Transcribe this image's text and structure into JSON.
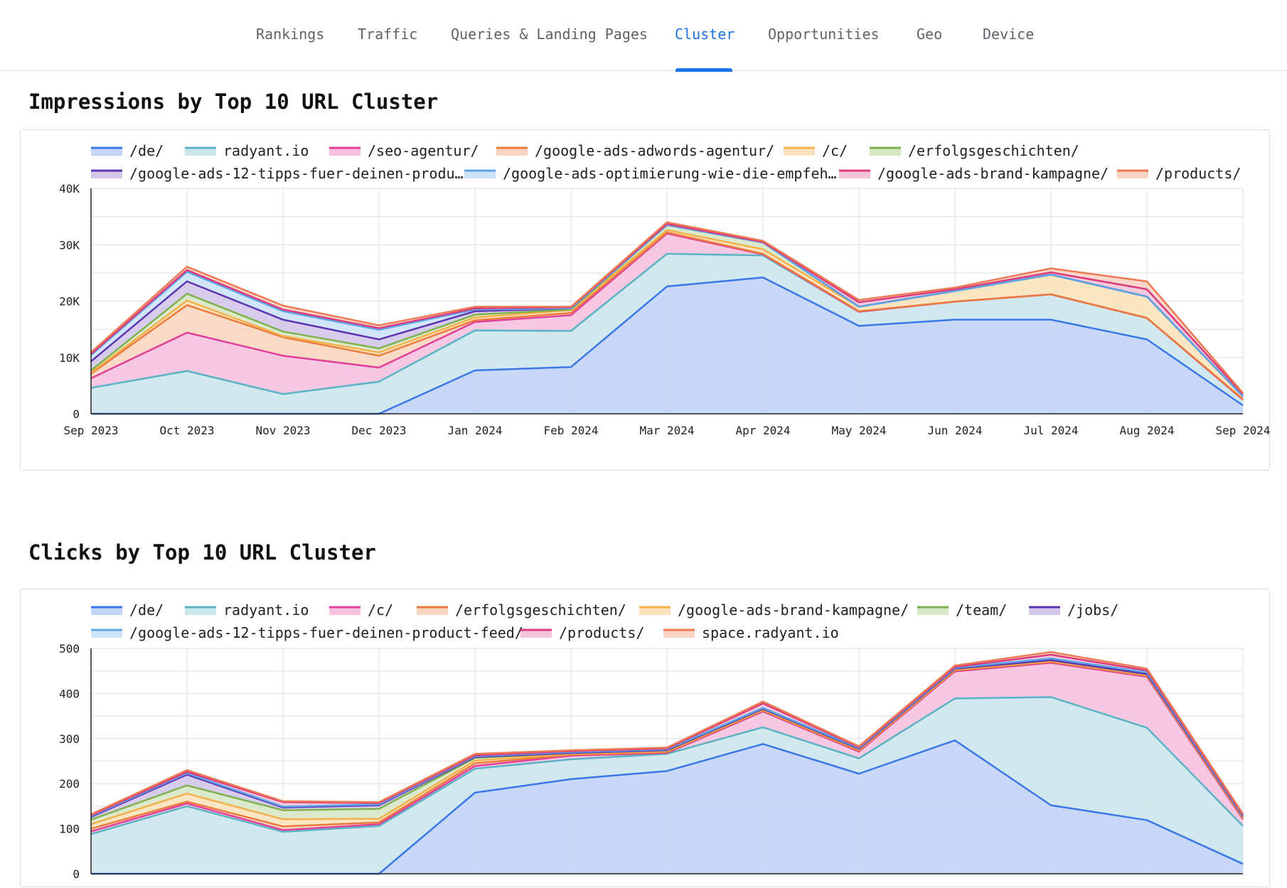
{
  "nav": {
    "tabs": [
      {
        "label": "Rankings",
        "active": false
      },
      {
        "label": "Traffic",
        "active": false
      },
      {
        "label": "Queries & Landing Pages",
        "active": false
      },
      {
        "label": "Cluster",
        "active": true
      },
      {
        "label": "Opportunities",
        "active": false
      },
      {
        "label": "Geo",
        "active": false
      },
      {
        "label": "Device",
        "active": false
      }
    ],
    "active_color": "#1a73e8"
  },
  "sections": [
    {
      "title": "Impressions by Top 10 URL Cluster"
    },
    {
      "title": "Clicks by Top 10 URL Cluster"
    }
  ],
  "chart_data": [
    {
      "type": "area",
      "stacked": true,
      "title": "Impressions by Top 10 URL Cluster",
      "x": [
        "Sep 2023",
        "Oct 2023",
        "Nov 2023",
        "Dec 2023",
        "Jan 2024",
        "Feb 2024",
        "Mar 2024",
        "Apr 2024",
        "May 2024",
        "Jun 2024",
        "Jul 2024",
        "Aug 2024",
        "Sep 2024"
      ],
      "ylim": [
        0,
        40000
      ],
      "yticks": [
        0,
        10000,
        20000,
        30000,
        40000
      ],
      "ytick_labels": [
        "0",
        "10K",
        "20K",
        "30K",
        "40K"
      ],
      "grid": true,
      "legend_position": "top",
      "series": [
        {
          "name": "/de/",
          "color": "#3b78e7",
          "fill": "#c3d4f7",
          "values": [
            0,
            0,
            0,
            0,
            7700,
            8300,
            22600,
            24200,
            15600,
            16700,
            16700,
            13200,
            1500
          ]
        },
        {
          "name": "radyant.io",
          "color": "#5ab3c5",
          "fill": "#cce7ec",
          "values": [
            4600,
            7600,
            3500,
            5700,
            7100,
            6400,
            5800,
            3900,
            2500,
            3200,
            4500,
            3800,
            1000
          ]
        },
        {
          "name": "/seo-agentur/",
          "color": "#e0409a",
          "fill": "#f6c2df",
          "values": [
            1700,
            6800,
            6800,
            2500,
            1500,
            2800,
            3600,
            200,
            0,
            0,
            0,
            0,
            0
          ]
        },
        {
          "name": "/google-ads-adwords-agentur/",
          "color": "#ec7a3c",
          "fill": "#f8d6c1",
          "values": [
            800,
            4900,
            3300,
            2100,
            300,
            400,
            200,
            100,
            100,
            0,
            0,
            0,
            100
          ]
        },
        {
          "name": "/c/",
          "color": "#f4b04a",
          "fill": "#fbe3bd",
          "values": [
            200,
            800,
            200,
            600,
            500,
            500,
            400,
            800,
            800,
            1900,
            3500,
            3800,
            500
          ]
        },
        {
          "name": "/erfolgsgeschichten/",
          "color": "#7fb24e",
          "fill": "#d7e8c6",
          "values": [
            400,
            1200,
            800,
            700,
            500,
            100,
            900,
            1200,
            0,
            0,
            0,
            0,
            0
          ]
        },
        {
          "name": "/google-ads-12-tipps-fuer-deinen-produ…",
          "color": "#5e35b1",
          "fill": "#d3c7ea",
          "values": [
            1600,
            2200,
            2100,
            1600,
            600,
            200,
            0,
            0,
            0,
            0,
            0,
            0,
            0
          ]
        },
        {
          "name": "/google-ads-optimierung-wie-die-empfeh…",
          "color": "#5ba5e8",
          "fill": "#cce3f8",
          "values": [
            1100,
            1700,
            1500,
            1700,
            300,
            0,
            0,
            0,
            0,
            0,
            0,
            0,
            0
          ]
        },
        {
          "name": "/google-ads-brand-kampagne/",
          "color": "#d93b7d",
          "fill": "#f4c4d8",
          "values": [
            200,
            300,
            300,
            300,
            200,
            200,
            200,
            100,
            800,
            300,
            400,
            1300,
            400
          ]
        },
        {
          "name": "/products/",
          "color": "#ee7a55",
          "fill": "#f9d3c4",
          "values": [
            300,
            600,
            700,
            500,
            300,
            100,
            300,
            200,
            400,
            300,
            700,
            1400,
            200
          ]
        }
      ]
    },
    {
      "type": "area",
      "stacked": true,
      "title": "Clicks by Top 10 URL Cluster",
      "x": [
        "Sep 2023",
        "Oct 2023",
        "Nov 2023",
        "Dec 2023",
        "Jan 2024",
        "Feb 2024",
        "Mar 2024",
        "Apr 2024",
        "May 2024",
        "Jun 2024",
        "Jul 2024",
        "Aug 2024",
        "Sep 2024"
      ],
      "ylim": [
        0,
        500
      ],
      "yticks": [
        0,
        100,
        200,
        300,
        400,
        500
      ],
      "ytick_labels": [
        "0",
        "100",
        "200",
        "300",
        "400",
        "500"
      ],
      "grid": true,
      "legend_position": "top",
      "series": [
        {
          "name": "/de/",
          "color": "#3b78e7",
          "fill": "#c3d4f7",
          "values": [
            0,
            0,
            0,
            0,
            180,
            210,
            228,
            288,
            222,
            296,
            152,
            119,
            22
          ]
        },
        {
          "name": "radyant.io",
          "color": "#5ab3c5",
          "fill": "#cce7ec",
          "values": [
            88,
            150,
            93,
            106,
            53,
            44,
            38,
            37,
            34,
            93,
            240,
            205,
            84
          ]
        },
        {
          "name": "/c/",
          "color": "#e0409a",
          "fill": "#f6c2df",
          "values": [
            6,
            6,
            4,
            4,
            6,
            8,
            2,
            35,
            15,
            60,
            76,
            113,
            15
          ]
        },
        {
          "name": "/erfolgsgeschichten/",
          "color": "#ec7a3c",
          "fill": "#f8d6c1",
          "values": [
            6,
            4,
            8,
            4,
            6,
            2,
            2,
            2,
            2,
            2,
            2,
            2,
            2
          ]
        },
        {
          "name": "/google-ads-brand-kampagne/",
          "color": "#f4b04a",
          "fill": "#fbe3bd",
          "values": [
            10,
            18,
            16,
            8,
            6,
            2,
            2,
            2,
            2,
            2,
            2,
            2,
            2
          ]
        },
        {
          "name": "/team/",
          "color": "#7fb24e",
          "fill": "#d7e8c6",
          "values": [
            10,
            18,
            20,
            22,
            6,
            2,
            2,
            2,
            2,
            2,
            2,
            2,
            2
          ]
        },
        {
          "name": "/jobs/",
          "color": "#5e35b1",
          "fill": "#d3c7ea",
          "values": [
            6,
            24,
            6,
            8,
            2,
            0,
            0,
            0,
            0,
            0,
            0,
            0,
            0
          ]
        },
        {
          "name": "/google-ads-12-tipps-fuer-deinen-product-feed/",
          "color": "#5ba5e8",
          "fill": "#cce3f8",
          "values": [
            2,
            3,
            2,
            2,
            2,
            2,
            2,
            2,
            2,
            2,
            4,
            4,
            2
          ]
        },
        {
          "name": "/products/",
          "color": "#d93b7d",
          "fill": "#f4c4d8",
          "values": [
            2,
            3,
            10,
            3,
            2,
            2,
            2,
            10,
            2,
            2,
            8,
            4,
            2
          ]
        },
        {
          "name": "space.radyant.io",
          "color": "#ee7a55",
          "fill": "#f9d3c4",
          "values": [
            2,
            4,
            2,
            2,
            3,
            2,
            2,
            4,
            2,
            3,
            6,
            4,
            2
          ]
        }
      ]
    }
  ]
}
